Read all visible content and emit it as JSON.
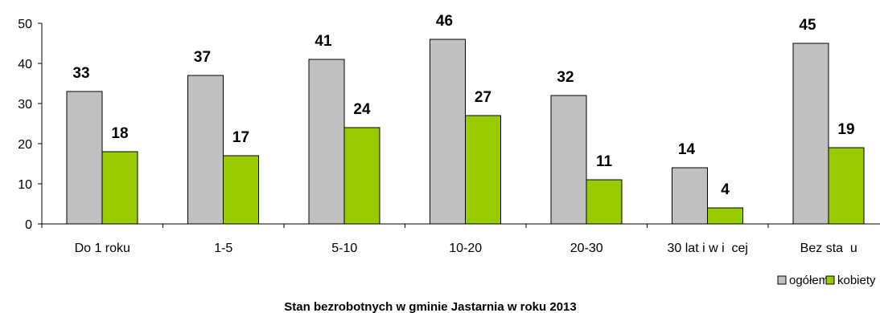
{
  "chart_data": {
    "type": "bar",
    "title": "Stan bezrobotnych w gminie Jastarnia w roku 2013",
    "categories": [
      "Do 1 roku",
      "1-5",
      "5-10",
      "10-20",
      "20-30",
      "30 lat i w i  cej",
      "Bez sta  u"
    ],
    "series": [
      {
        "name": "ogółem",
        "color": "#c0c0c0",
        "values": [
          33,
          37,
          41,
          46,
          32,
          14,
          45
        ]
      },
      {
        "name": "kobiety",
        "color": "#99cc00",
        "values": [
          18,
          17,
          24,
          27,
          11,
          4,
          19
        ]
      }
    ],
    "ylim": [
      0,
      50
    ],
    "yticks": [
      0,
      10,
      20,
      30,
      40,
      50
    ],
    "grid": false,
    "legend": "bottom-right",
    "data_labels": true,
    "xlabel": "",
    "ylabel": ""
  }
}
